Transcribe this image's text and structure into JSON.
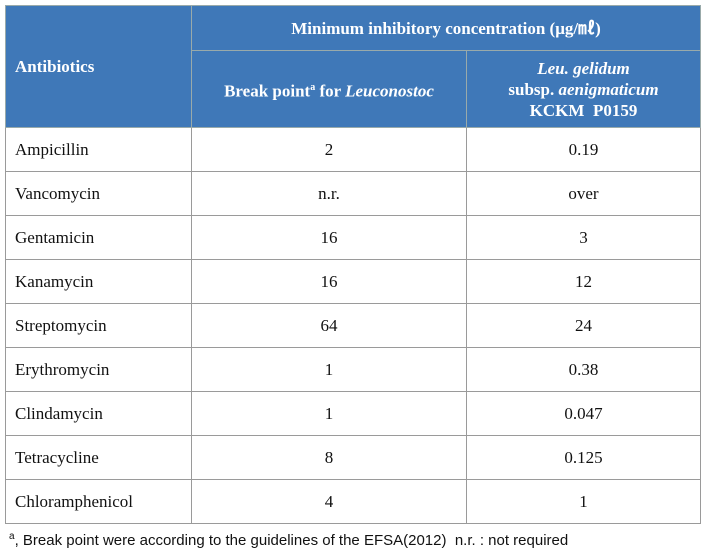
{
  "header": {
    "antibiotics": "Antibiotics",
    "group": "Minimum  inhibitory  concentration (μg/㎖)",
    "breakpoint": {
      "text": "Break point",
      "marker": "a",
      "for": "for",
      "genus": "Leuconostoc"
    },
    "strain": {
      "species": "Leu. gelidum",
      "subsp": "subsp.",
      "subspecies": "aenigmaticum",
      "id": "KCKM  P0159"
    }
  },
  "table": {
    "rows": [
      [
        "Ampicillin",
        "2",
        "0.19"
      ],
      [
        "Vancomycin",
        "n.r.",
        "over"
      ],
      [
        "Gentamicin",
        "16",
        "3"
      ],
      [
        "Kanamycin",
        "16",
        "12"
      ],
      [
        "Streptomycin",
        "64",
        "24"
      ],
      [
        "Erythromycin",
        "1",
        "0.38"
      ],
      [
        "Clindamycin",
        "1",
        "0.047"
      ],
      [
        "Tetracycline",
        "8",
        "0.125"
      ],
      [
        "Chloramphenicol",
        "4",
        "1"
      ]
    ]
  },
  "footnote": {
    "marker": "a",
    "text": ", Break point were according to the guidelines of the EFSA(2012)  n.r. : not required"
  }
}
